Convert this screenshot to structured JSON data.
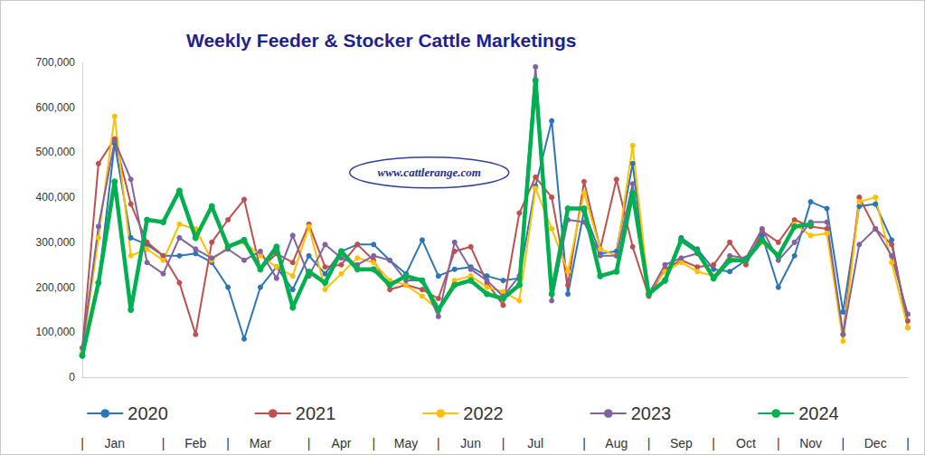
{
  "chart_data": {
    "type": "line",
    "title": "Weekly Feeder & Stocker Cattle Marketings",
    "annotations": [
      "www.cattlerange.com"
    ],
    "categories": [
      "|",
      null,
      "Jan",
      null,
      null,
      "|",
      null,
      "Feb",
      null,
      "|",
      null,
      "Mar",
      null,
      null,
      "|",
      null,
      "Apr",
      null,
      "|",
      null,
      "May",
      null,
      "|",
      null,
      "Jun",
      null,
      "|",
      null,
      "Jul",
      null,
      null,
      "|",
      null,
      "Aug",
      null,
      "|",
      null,
      "Sep",
      null,
      "|",
      null,
      "Oct",
      null,
      "|",
      null,
      "Nov",
      null,
      "|",
      null,
      "Dec",
      null,
      "|"
    ],
    "ylim": [
      0,
      700000
    ],
    "yticks": [
      0,
      {
        "value": 100000,
        "label": "100,000"
      },
      {
        "value": 200000,
        "label": "200,000"
      },
      {
        "value": 300000,
        "label": "300,000"
      },
      {
        "value": 400000,
        "label": "400,000"
      },
      {
        "value": 500000,
        "label": "500,000"
      },
      {
        "value": 600000,
        "label": "600,000"
      },
      {
        "value": 700000,
        "label": "700,000"
      }
    ],
    "grid": false,
    "legend": "bottom",
    "marker": "circle",
    "series": [
      {
        "name": "2020",
        "color": "#2e75b6",
        "line_style": "solid",
        "values": [
          50000,
          210000,
          520000,
          310000,
          295000,
          270000,
          270000,
          275000,
          255000,
          200000,
          85000,
          200000,
          245000,
          195000,
          270000,
          230000,
          280000,
          295000,
          295000,
          260000,
          230000,
          305000,
          225000,
          240000,
          245000,
          225000,
          215000,
          220000,
          425000,
          570000,
          185000,
          370000,
          275000,
          280000,
          475000,
          185000,
          215000,
          310000,
          285000,
          240000,
          235000,
          260000,
          315000,
          200000,
          270000,
          390000,
          375000,
          145000,
          380000,
          385000,
          305000,
          110000
        ]
      },
      {
        "name": "2021",
        "color": "#c0504d",
        "line_style": "solid",
        "values": [
          65000,
          475000,
          530000,
          385000,
          300000,
          270000,
          210000,
          95000,
          300000,
          350000,
          395000,
          240000,
          275000,
          255000,
          340000,
          245000,
          250000,
          295000,
          260000,
          195000,
          205000,
          195000,
          175000,
          280000,
          290000,
          210000,
          160000,
          365000,
          445000,
          400000,
          205000,
          435000,
          285000,
          440000,
          290000,
          180000,
          240000,
          260000,
          245000,
          250000,
          300000,
          250000,
          325000,
          300000,
          350000,
          335000,
          330000,
          95000,
          400000,
          330000,
          295000,
          125000
        ]
      },
      {
        "name": "2022",
        "color": "#ffc000",
        "line_style": "solid",
        "values": [
          55000,
          310000,
          580000,
          270000,
          285000,
          260000,
          340000,
          330000,
          260000,
          290000,
          300000,
          270000,
          245000,
          225000,
          335000,
          195000,
          230000,
          265000,
          255000,
          215000,
          205000,
          180000,
          150000,
          215000,
          225000,
          200000,
          190000,
          170000,
          420000,
          330000,
          235000,
          410000,
          285000,
          270000,
          515000,
          190000,
          235000,
          255000,
          235000,
          225000,
          265000,
          260000,
          300000,
          270000,
          340000,
          315000,
          320000,
          80000,
          390000,
          400000,
          255000,
          110000
        ]
      },
      {
        "name": "2023",
        "color": "#8064a2",
        "line_style": "solid",
        "values": [
          65000,
          335000,
          525000,
          440000,
          255000,
          230000,
          310000,
          285000,
          265000,
          285000,
          260000,
          280000,
          220000,
          315000,
          225000,
          295000,
          265000,
          250000,
          270000,
          260000,
          215000,
          215000,
          135000,
          300000,
          240000,
          215000,
          180000,
          225000,
          690000,
          170000,
          350000,
          345000,
          270000,
          270000,
          430000,
          185000,
          250000,
          265000,
          275000,
          220000,
          270000,
          265000,
          330000,
          260000,
          300000,
          345000,
          345000,
          95000,
          295000,
          330000,
          270000,
          140000
        ]
      },
      {
        "name": "2024",
        "color": "#00b050",
        "line_style": "thick",
        "values": [
          48000,
          210000,
          435000,
          150000,
          350000,
          345000,
          415000,
          310000,
          380000,
          290000,
          305000,
          240000,
          290000,
          155000,
          235000,
          210000,
          280000,
          240000,
          240000,
          205000,
          225000,
          215000,
          150000,
          205000,
          215000,
          185000,
          175000,
          205000,
          660000,
          185000,
          375000,
          375000,
          225000,
          235000,
          410000,
          185000,
          215000,
          305000,
          280000,
          220000,
          260000,
          260000,
          305000,
          270000,
          335000,
          340000,
          null,
          null,
          null,
          null,
          null,
          null
        ]
      }
    ]
  }
}
